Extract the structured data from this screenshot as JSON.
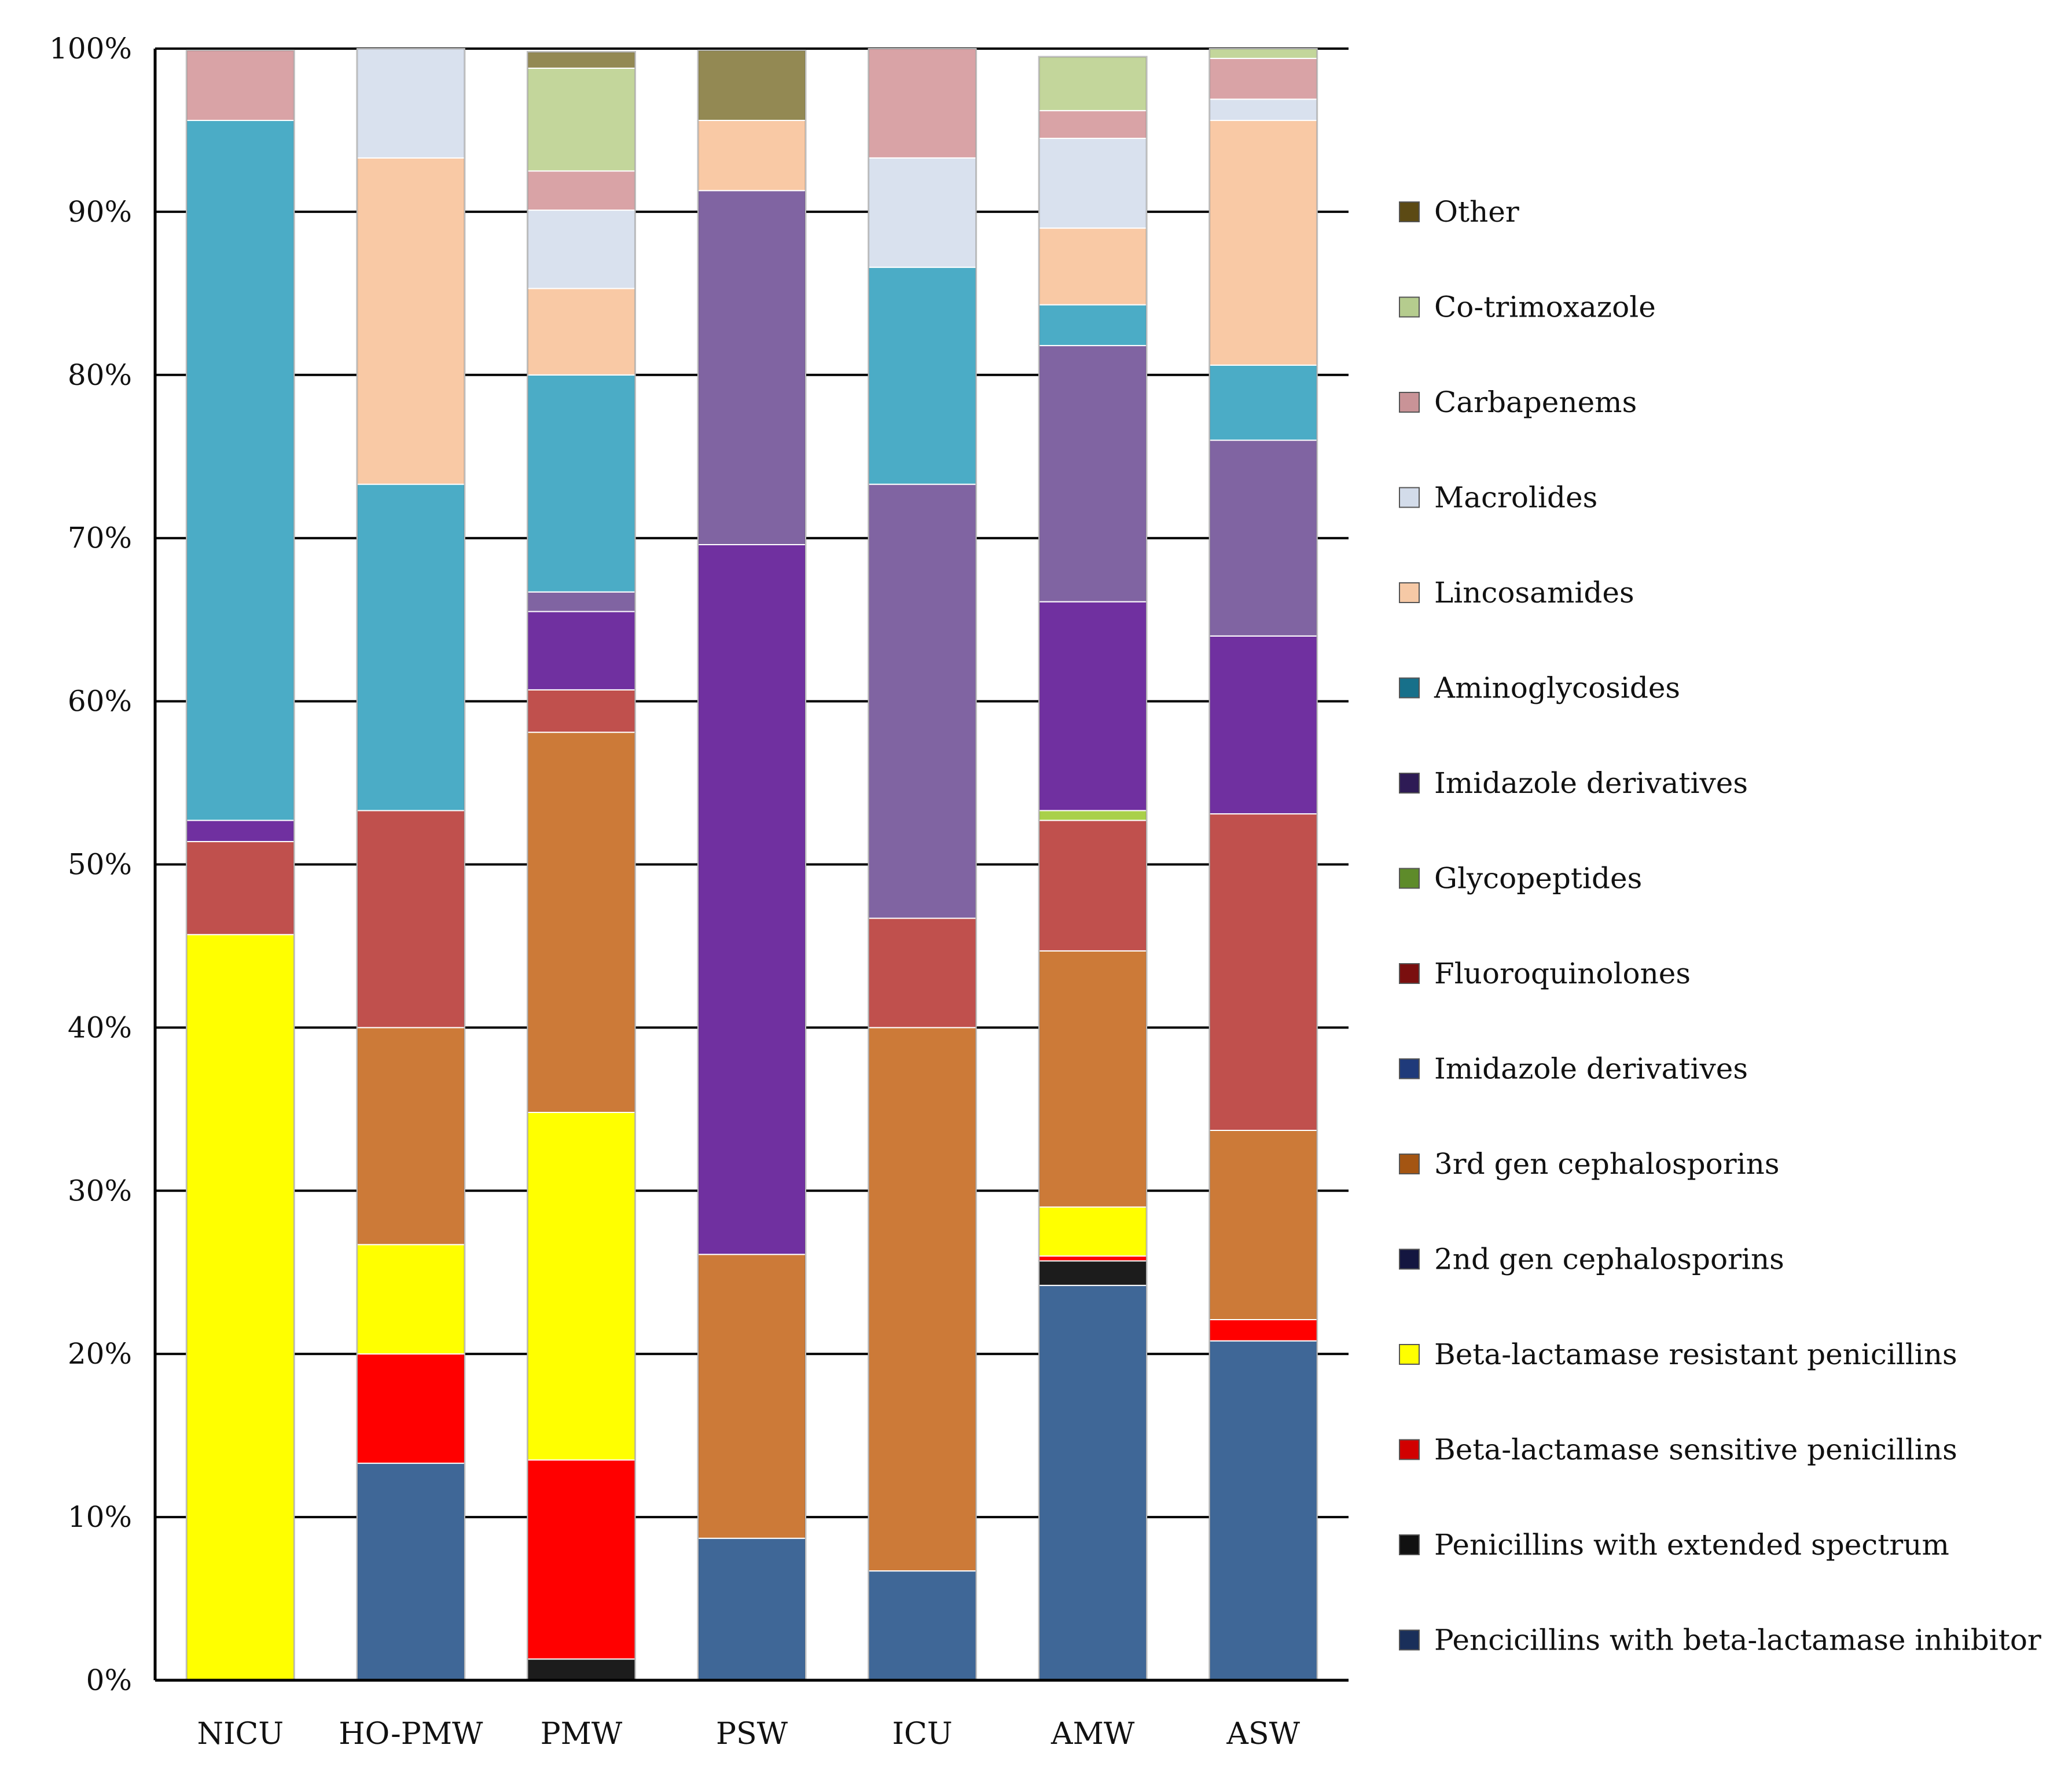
{
  "chart_data": {
    "type": "bar",
    "stacked": true,
    "normalized": true,
    "title": "",
    "xlabel": "",
    "ylabel": "",
    "ylim": [
      0,
      100
    ],
    "yticks": [
      "0%",
      "10%",
      "20%",
      "30%",
      "40%",
      "50%",
      "60%",
      "70%",
      "80%",
      "90%",
      "100%"
    ],
    "grid": true,
    "legend_position": "right",
    "categories": [
      "NICU",
      "HO-PMW",
      "PMW",
      "PSW",
      "ICU",
      "AMW",
      "ASW"
    ],
    "series": [
      {
        "name": "Pencicillins with beta-lactamase inhibitor",
        "color": "#3F6797",
        "values": [
          0,
          13.3,
          0,
          8.7,
          6.7,
          24.2,
          20.8
        ]
      },
      {
        "name": "Penicillins with extended spectrum",
        "color": "#1C1C1C",
        "values": [
          0,
          0,
          1.3,
          0,
          0,
          1.5,
          0
        ]
      },
      {
        "name": "Beta-lactamase sensitive penicillins",
        "color": "#FF0000",
        "values": [
          0,
          6.7,
          12.2,
          0,
          0,
          0.3,
          1.3
        ]
      },
      {
        "name": "Beta-lactamase resistant penicillins",
        "color": "#FFFF00",
        "values": [
          45.7,
          6.7,
          21.3,
          0,
          0,
          3.0,
          0
        ]
      },
      {
        "name": "2nd gen cephalosporins",
        "color": "#1F1F5C",
        "values": [
          0,
          0,
          0,
          0,
          0,
          0,
          0
        ]
      },
      {
        "name": "3rd gen cephalosporins",
        "color": "#CC7A38",
        "values": [
          0,
          13.3,
          23.3,
          17.4,
          33.3,
          15.7,
          11.6
        ]
      },
      {
        "name": "Imidazole derivatives",
        "color": "#1F3F8A",
        "values": [
          0,
          0,
          0,
          0,
          0,
          0,
          0
        ]
      },
      {
        "name": "Fluoroquinolones",
        "color": "#C0504D",
        "values": [
          5.7,
          13.3,
          2.6,
          0,
          6.7,
          8.0,
          19.4
        ]
      },
      {
        "name": "Glycopeptides",
        "color": "#A9D04A",
        "values": [
          0,
          0,
          0,
          0,
          0,
          0.6,
          0
        ]
      },
      {
        "name": "Imidazole derivatives",
        "color": "#7030A0",
        "values": [
          1.3,
          0,
          4.8,
          43.5,
          0,
          12.8,
          10.9
        ]
      },
      {
        "name": "Aminoglycosides",
        "color": "#4BACC6",
        "values": [
          42.9,
          20.0,
          13.3,
          0,
          13.3,
          2.5,
          4.6
        ]
      },
      {
        "name": "Lincosamides",
        "color": "#F9C9A5",
        "values": [
          0,
          20.0,
          5.3,
          4.3,
          0,
          4.7,
          15.0
        ]
      },
      {
        "name": "Macrolides",
        "color": "#D9E1EE",
        "values": [
          0,
          6.7,
          4.8,
          0,
          6.7,
          5.5,
          1.3
        ]
      },
      {
        "name": "Carbapenems",
        "color": "#D9A3A6",
        "values": [
          4.3,
          0,
          2.4,
          0,
          6.7,
          1.7,
          2.5
        ]
      },
      {
        "name": "Co-trimoxazole",
        "color": "#C3D69B",
        "values": [
          0,
          0,
          6.3,
          0,
          0,
          3.3,
          0.6
        ]
      },
      {
        "name": "Other",
        "color": "#938953",
        "values": [
          0,
          0,
          1.0,
          4.3,
          0,
          0,
          0
        ]
      }
    ],
    "extra_segments": [
      {
        "category": "ICU",
        "name": "Imidazole derivatives (purple-grey)",
        "color": "#8064A2",
        "value": 26.6
      },
      {
        "category": "PSW",
        "name": "Imidazole derivatives (purple-grey)",
        "color": "#8064A2",
        "value": 21.7
      },
      {
        "category": "PMW",
        "name": "Imidazole derivatives (purple-grey)",
        "color": "#8064A2",
        "value": 1.2
      },
      {
        "category": "AMW",
        "name": "Imidazole derivatives (purple-grey)",
        "color": "#8064A2",
        "value": 15.7
      },
      {
        "category": "ASW",
        "name": "Imidazole derivatives (purple-grey)",
        "color": "#8064A2",
        "value": 12.0
      }
    ],
    "legend": [
      {
        "label": "Other",
        "color": "#5C4A14"
      },
      {
        "label": "Co-trimoxazole",
        "color": "#B5CC8E"
      },
      {
        "label": "Carbapenems",
        "color": "#C99397"
      },
      {
        "label": "Macrolides",
        "color": "#D3DCEA"
      },
      {
        "label": "Lincosamides",
        "color": "#F6C9A6"
      },
      {
        "label": "Aminoglycosides",
        "color": "#17708A"
      },
      {
        "label": "Imidazole derivatives",
        "color": "#2E1B55"
      },
      {
        "label": "Glycopeptides",
        "color": "#5E8B2A"
      },
      {
        "label": "Fluoroquinolones",
        "color": "#7A0F0F"
      },
      {
        "label": "Imidazole derivatives",
        "color": "#1F3A7A"
      },
      {
        "label": "3rd gen cephalosporins",
        "color": "#A45512"
      },
      {
        "label": "2nd gen cephalosporins",
        "color": "#141640"
      },
      {
        "label": "Beta-lactamase resistant penicillins",
        "color": "#FFFF00"
      },
      {
        "label": "Beta-lactamase sensitive penicillins",
        "color": "#D10000"
      },
      {
        "label": "Penicillins with extended spectrum",
        "color": "#111111"
      },
      {
        "label": "Pencicillins with beta-lactamase inhibitor",
        "color": "#1A2F5A"
      }
    ]
  }
}
